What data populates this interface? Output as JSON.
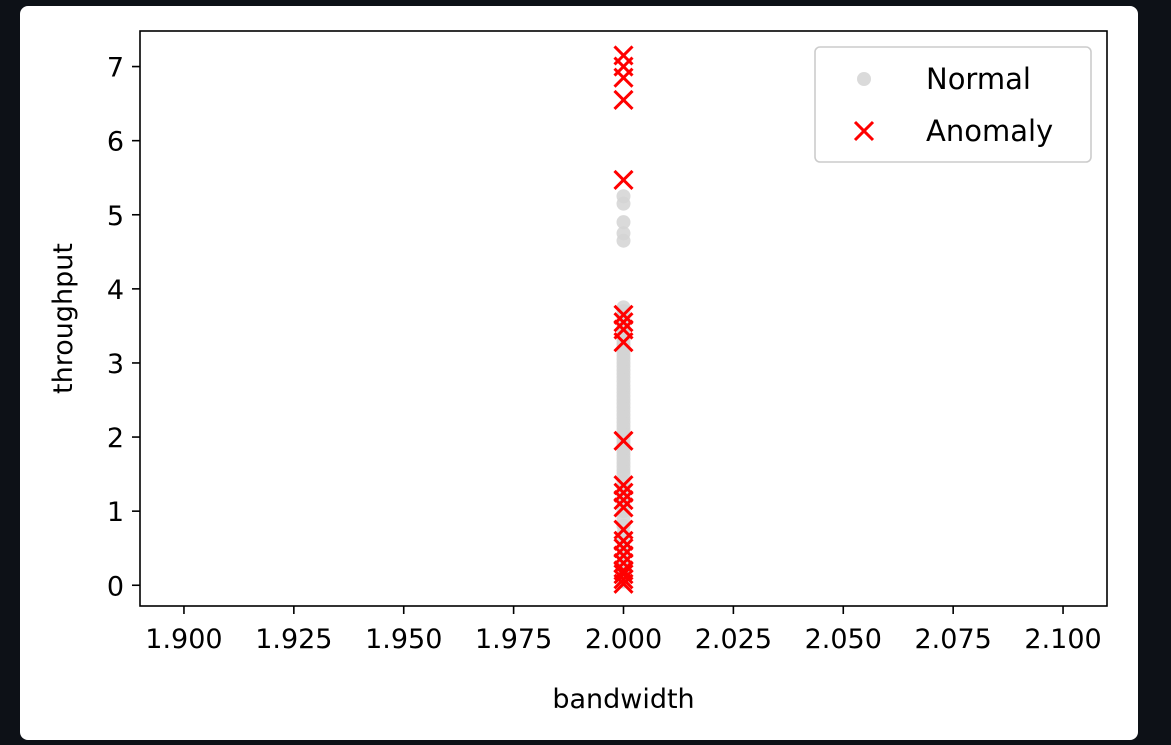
{
  "chart_data": {
    "type": "scatter",
    "title": "",
    "xlabel": "bandwidth",
    "ylabel": "throughput",
    "xlim": [
      1.89,
      2.11
    ],
    "ylim": [
      -0.28,
      7.48
    ],
    "xticks": [
      1.9,
      1.925,
      1.95,
      1.975,
      2.0,
      2.025,
      2.05,
      2.075,
      2.1
    ],
    "xtick_labels": [
      "1.900",
      "1.925",
      "1.950",
      "1.975",
      "2.000",
      "2.025",
      "2.050",
      "2.075",
      "2.100"
    ],
    "yticks": [
      0,
      1,
      2,
      3,
      4,
      5,
      6,
      7
    ],
    "ytick_labels": [
      "0",
      "1",
      "2",
      "3",
      "4",
      "5",
      "6",
      "7"
    ],
    "grid": false,
    "legend": {
      "position": "top-right",
      "entries": [
        "Normal",
        "Anomaly"
      ]
    },
    "series": [
      {
        "name": "Normal",
        "marker": "circle",
        "color": "#d3d3d3",
        "x": [
          2.0,
          2.0,
          2.0,
          2.0,
          2.0,
          2.0,
          2.0,
          2.0,
          2.0,
          2.0,
          2.0,
          2.0,
          2.0,
          2.0,
          2.0,
          2.0,
          2.0,
          2.0,
          2.0,
          2.0,
          2.0,
          2.0,
          2.0,
          2.0,
          2.0,
          2.0,
          2.0,
          2.0,
          2.0,
          2.0,
          2.0,
          2.0,
          2.0,
          2.0,
          2.0,
          2.0,
          2.0,
          2.0,
          2.0,
          2.0,
          2.0,
          2.0,
          2.0,
          2.0,
          2.0,
          2.0,
          2.0,
          2.0,
          2.0,
          2.0,
          2.0,
          2.0,
          2.0,
          2.0,
          2.0,
          2.0,
          2.0,
          2.0,
          2.0,
          2.0,
          2.0,
          2.0,
          2.0,
          2.0,
          2.0,
          2.0,
          2.0,
          2.0
        ],
        "y": [
          0.05,
          0.1,
          0.15,
          0.2,
          0.25,
          0.3,
          0.4,
          0.5,
          0.6,
          0.7,
          0.8,
          0.9,
          1.0,
          1.1,
          1.2,
          1.3,
          1.4,
          1.5,
          1.55,
          1.6,
          1.65,
          1.7,
          1.75,
          1.8,
          1.85,
          1.9,
          1.95,
          2.0,
          2.05,
          2.1,
          2.15,
          2.2,
          2.25,
          2.3,
          2.35,
          2.4,
          2.45,
          2.5,
          2.55,
          2.6,
          2.65,
          2.7,
          2.75,
          2.8,
          2.85,
          2.9,
          2.95,
          3.0,
          3.05,
          3.1,
          3.15,
          3.2,
          3.25,
          3.3,
          3.35,
          3.4,
          3.45,
          3.5,
          3.55,
          3.6,
          3.65,
          3.7,
          3.75,
          4.65,
          4.75,
          4.9,
          5.15,
          5.25
        ]
      },
      {
        "name": "Anomaly",
        "marker": "x",
        "color": "#ff0000",
        "x": [
          2.0,
          2.0,
          2.0,
          2.0,
          2.0,
          2.0,
          2.0,
          2.0,
          2.0,
          2.0,
          2.0,
          2.0,
          2.0,
          2.0,
          2.0,
          2.0,
          2.0,
          2.0,
          2.0,
          2.0,
          2.0,
          2.0,
          2.0
        ],
        "y": [
          7.15,
          7.0,
          6.85,
          6.55,
          5.47,
          3.65,
          3.55,
          3.45,
          3.28,
          1.95,
          1.35,
          1.25,
          1.15,
          1.05,
          0.75,
          0.6,
          0.5,
          0.4,
          0.3,
          0.2,
          0.15,
          0.08,
          0.02
        ]
      }
    ]
  }
}
